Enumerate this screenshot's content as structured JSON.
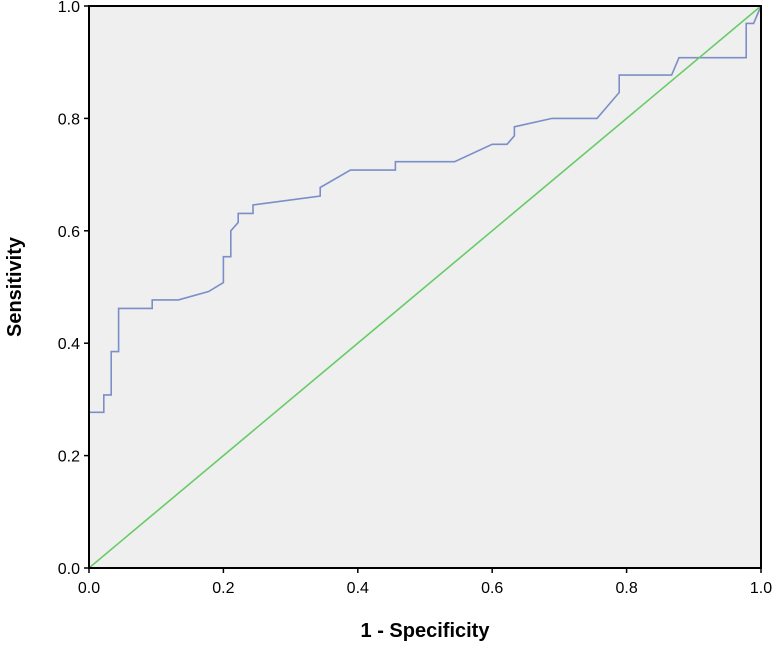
{
  "chart_data": {
    "type": "line",
    "title": "",
    "xlabel": "1 - Specificity",
    "ylabel": "Sensitivity",
    "xlim": [
      0,
      1
    ],
    "ylim": [
      0,
      1
    ],
    "x_ticks": [
      "0.0",
      "0.2",
      "0.4",
      "0.6",
      "0.8",
      "1.0"
    ],
    "y_ticks": [
      "0.0",
      "0.2",
      "0.4",
      "0.6",
      "0.8",
      "1.0"
    ],
    "grid": false,
    "legend": "none",
    "plot_background": "#efefef",
    "series": [
      {
        "color": "#7b8ec8",
        "x": [
          0,
          0,
          0.022,
          0.022,
          0.033,
          0.033,
          0.044,
          0.044,
          0.094,
          0.094,
          0.133,
          0.178,
          0.2,
          0.2,
          0.211,
          0.211,
          0.222,
          0.222,
          0.244,
          0.244,
          0.344,
          0.344,
          0.389,
          0.456,
          0.456,
          0.544,
          0.6,
          0.622,
          0.633,
          0.633,
          0.689,
          0.756,
          0.789,
          0.789,
          0.867,
          0.878,
          0.978,
          0.978,
          0.989,
          1.0
        ],
        "y": [
          0,
          0.277,
          0.277,
          0.308,
          0.308,
          0.385,
          0.385,
          0.462,
          0.462,
          0.477,
          0.477,
          0.492,
          0.508,
          0.554,
          0.554,
          0.6,
          0.615,
          0.631,
          0.631,
          0.646,
          0.662,
          0.677,
          0.708,
          0.708,
          0.723,
          0.723,
          0.754,
          0.754,
          0.769,
          0.785,
          0.8,
          0.8,
          0.846,
          0.877,
          0.877,
          0.908,
          0.908,
          0.969,
          0.969,
          1.0
        ]
      },
      {
        "color": "#66cc66",
        "x": [
          0,
          1
        ],
        "y": [
          0,
          1
        ]
      }
    ]
  }
}
